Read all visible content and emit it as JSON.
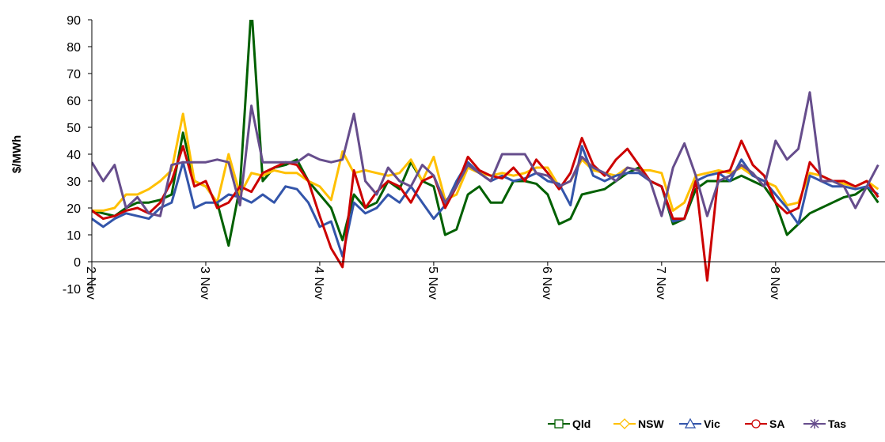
{
  "chart_data": {
    "type": "line",
    "ylabel": "$/MWh",
    "x": [
      2.0,
      2.1,
      2.2,
      2.3,
      2.4,
      2.5,
      2.6,
      2.7,
      2.8,
      2.9,
      3.0,
      3.1,
      3.2,
      3.3,
      3.4,
      3.5,
      3.6,
      3.7,
      3.8,
      3.9,
      4.0,
      4.1,
      4.2,
      4.3,
      4.4,
      4.5,
      4.6,
      4.7,
      4.8,
      4.9,
      5.0,
      5.1,
      5.2,
      5.3,
      5.4,
      5.5,
      5.6,
      5.7,
      5.8,
      5.9,
      6.0,
      6.1,
      6.2,
      6.3,
      6.4,
      6.5,
      6.6,
      6.7,
      6.8,
      6.9,
      7.0,
      7.1,
      7.2,
      7.3,
      7.4,
      7.5,
      7.6,
      7.7,
      7.8,
      7.9,
      8.0,
      8.1,
      8.2,
      8.3,
      8.4,
      8.5,
      8.6,
      8.7,
      8.8,
      8.9
    ],
    "series": [
      {
        "name": "Qld",
        "color": "#006000",
        "marker": "square",
        "values": [
          19,
          18,
          17,
          20,
          22,
          22,
          23,
          25,
          48,
          30,
          28,
          22,
          6,
          28,
          95,
          30,
          35,
          36,
          38,
          30,
          25,
          20,
          8,
          25,
          20,
          22,
          30,
          27,
          37,
          30,
          28,
          10,
          12,
          25,
          28,
          22,
          22,
          30,
          30,
          29,
          25,
          14,
          16,
          25,
          26,
          27,
          30,
          33,
          35,
          30,
          28,
          14,
          16,
          27,
          30,
          30,
          30,
          32,
          30,
          28,
          22,
          10,
          14,
          18,
          20,
          22,
          24,
          25,
          28,
          22
        ]
      },
      {
        "name": "NSW",
        "color": "#ffc000",
        "marker": "diamond",
        "values": [
          19,
          19,
          20,
          25,
          25,
          27,
          30,
          34,
          55,
          30,
          28,
          22,
          40,
          25,
          33,
          32,
          34,
          33,
          33,
          30,
          28,
          23,
          41,
          33,
          34,
          33,
          32,
          33,
          38,
          30,
          39,
          23,
          25,
          35,
          33,
          32,
          33,
          32,
          33,
          35,
          35,
          28,
          30,
          38,
          34,
          33,
          32,
          35,
          34,
          34,
          33,
          19,
          22,
          32,
          33,
          34,
          33,
          35,
          32,
          30,
          28,
          21,
          22,
          33,
          32,
          30,
          29,
          28,
          30,
          27
        ]
      },
      {
        "name": "Vic",
        "color": "#3355aa",
        "marker": "triangle",
        "values": [
          16,
          13,
          16,
          18,
          17,
          16,
          20,
          22,
          37,
          20,
          22,
          22,
          25,
          24,
          22,
          25,
          22,
          28,
          27,
          22,
          13,
          15,
          2,
          22,
          18,
          20,
          25,
          22,
          28,
          22,
          16,
          21,
          30,
          37,
          33,
          30,
          32,
          30,
          31,
          33,
          30,
          29,
          21,
          43,
          32,
          30,
          32,
          33,
          33,
          30,
          28,
          15,
          16,
          30,
          32,
          33,
          30,
          38,
          32,
          30,
          25,
          20,
          14,
          32,
          30,
          28,
          28,
          27,
          28,
          25
        ]
      },
      {
        "name": "SA",
        "color": "#cc0000",
        "marker": "circle",
        "values": [
          19,
          16,
          17,
          19,
          20,
          18,
          22,
          30,
          43,
          28,
          30,
          20,
          22,
          28,
          26,
          33,
          35,
          37,
          36,
          30,
          17,
          5,
          -2,
          34,
          20,
          26,
          30,
          28,
          22,
          30,
          32,
          20,
          28,
          39,
          34,
          32,
          31,
          35,
          30,
          38,
          33,
          27,
          33,
          46,
          36,
          32,
          38,
          42,
          36,
          30,
          28,
          16,
          16,
          30,
          -7,
          33,
          34,
          45,
          36,
          32,
          22,
          18,
          20,
          37,
          32,
          30,
          30,
          28,
          30,
          24
        ]
      },
      {
        "name": "Tas",
        "color": "#664d8c",
        "marker": "star",
        "values": [
          37,
          30,
          36,
          20,
          24,
          18,
          17,
          36,
          37,
          37,
          37,
          38,
          37,
          21,
          58,
          37,
          37,
          37,
          37,
          40,
          38,
          37,
          38,
          55,
          30,
          25,
          35,
          30,
          28,
          36,
          32,
          22,
          28,
          36,
          33,
          30,
          40,
          40,
          40,
          33,
          32,
          28,
          30,
          39,
          35,
          33,
          30,
          35,
          34,
          30,
          17,
          35,
          44,
          32,
          17,
          30,
          32,
          36,
          33,
          28,
          45,
          38,
          42,
          63,
          30,
          30,
          28,
          20,
          28,
          36
        ]
      }
    ],
    "xlim": [
      2,
      8.96
    ],
    "xticks": [
      {
        "value": 2,
        "label": "2 Nov"
      },
      {
        "value": 3,
        "label": "3 Nov"
      },
      {
        "value": 4,
        "label": "4 Nov"
      },
      {
        "value": 5,
        "label": "5 Nov"
      },
      {
        "value": 6,
        "label": "6 Nov"
      },
      {
        "value": 7,
        "label": "7 Nov"
      },
      {
        "value": 8,
        "label": "8 Nov"
      }
    ],
    "ylim": [
      -10,
      90
    ],
    "yticks": [
      -10,
      0,
      10,
      20,
      30,
      40,
      50,
      60,
      70,
      80,
      90
    ],
    "grid": false,
    "legend": "bottom-right"
  }
}
